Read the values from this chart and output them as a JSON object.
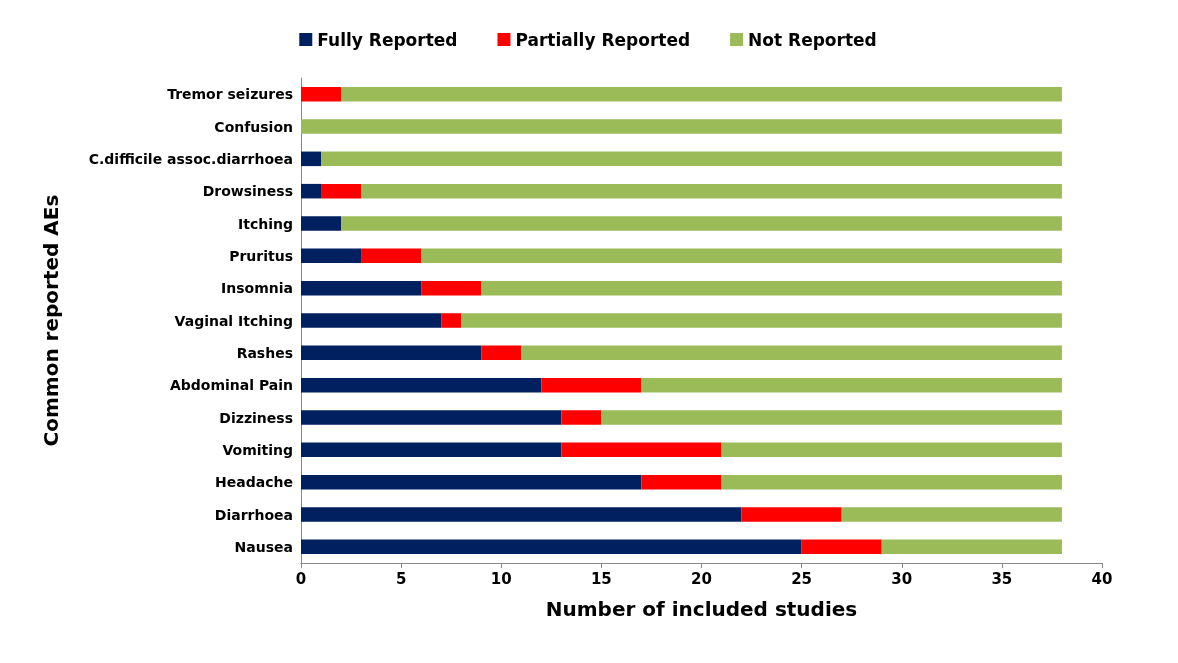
{
  "chart_data": {
    "type": "bar",
    "orientation": "horizontal",
    "stacked": true,
    "xlabel": "Number of included studies",
    "ylabel": "Common reported AEs",
    "categories": [
      "Tremor seizures",
      "Confusion",
      "C.difficile assoc.diarrhoea",
      "Drowsiness",
      "Itching",
      "Pruritus",
      "Insomnia",
      "Vaginal Itching",
      "Rashes",
      "Abdominal Pain",
      "Dizziness",
      "Vomiting",
      "Headache",
      "Diarrhoea",
      "Nausea"
    ],
    "series": [
      {
        "name": "Fully Reported",
        "color": "#002060",
        "values": [
          0,
          0,
          1,
          1,
          2,
          3,
          6,
          7,
          9,
          12,
          13,
          13,
          17,
          22,
          25
        ]
      },
      {
        "name": "Partially Reported",
        "color": "#ff0000",
        "values": [
          2,
          0,
          0,
          2,
          0,
          3,
          3,
          1,
          2,
          5,
          2,
          8,
          4,
          5,
          4
        ]
      },
      {
        "name": "Not Reported",
        "color": "#9bbb59",
        "values": [
          36,
          38,
          37,
          35,
          36,
          32,
          29,
          30,
          27,
          21,
          23,
          17,
          17,
          11,
          9
        ]
      }
    ],
    "xlim": [
      0,
      40
    ],
    "xticks": [
      0,
      5,
      10,
      15,
      20,
      25,
      30,
      35,
      40
    ],
    "grid": false,
    "legend": "top"
  }
}
